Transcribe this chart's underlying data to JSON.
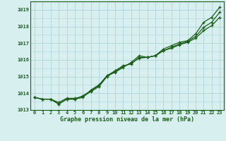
{
  "title": "",
  "xlabel": "Graphe pression niveau de la mer (hPa)",
  "background_color": "#cce8eb",
  "grid_color": "#b0d4d8",
  "plot_bg_color": "#d8eff0",
  "text_color": "#1a5e1a",
  "line_color": "#1a5e1a",
  "ylim": [
    1013,
    1019.5
  ],
  "xlim": [
    -0.5,
    23.5
  ],
  "yticks": [
    1013,
    1014,
    1015,
    1016,
    1017,
    1018,
    1019
  ],
  "xtick_labels": [
    "0",
    "1",
    "2",
    "3",
    "4",
    "5",
    "6",
    "7",
    "8",
    "9",
    "10",
    "11",
    "12",
    "13",
    "14",
    "15",
    "16",
    "17",
    "18",
    "19",
    "20",
    "21",
    "22",
    "23"
  ],
  "series1": [
    1013.75,
    1013.65,
    1013.65,
    1013.35,
    1013.65,
    1013.65,
    1013.75,
    1014.2,
    1014.5,
    1015.05,
    1015.25,
    1015.55,
    1015.85,
    1016.25,
    1016.15,
    1016.25,
    1016.65,
    1016.85,
    1017.05,
    1017.15,
    1017.55,
    1018.25,
    1018.55,
    1019.15
  ],
  "series2": [
    1013.75,
    1013.65,
    1013.65,
    1013.35,
    1013.65,
    1013.65,
    1013.85,
    1014.15,
    1014.45,
    1015.05,
    1015.35,
    1015.65,
    1015.75,
    1016.15,
    1016.15,
    1016.25,
    1016.55,
    1016.75,
    1016.95,
    1017.1,
    1017.4,
    1017.95,
    1018.25,
    1018.85
  ],
  "series3": [
    1013.75,
    1013.65,
    1013.65,
    1013.45,
    1013.7,
    1013.7,
    1013.8,
    1014.1,
    1014.4,
    1015.0,
    1015.3,
    1015.6,
    1015.8,
    1016.1,
    1016.15,
    1016.25,
    1016.55,
    1016.7,
    1016.9,
    1017.05,
    1017.3,
    1017.75,
    1018.05,
    1018.55
  ]
}
